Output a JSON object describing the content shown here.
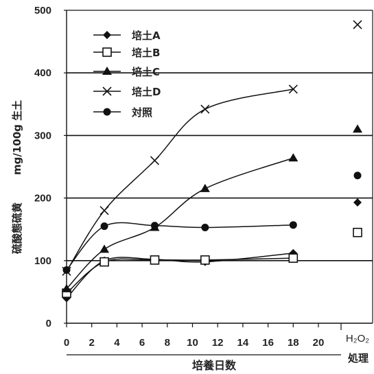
{
  "chart_data": {
    "type": "line",
    "xlabel": "培養日数",
    "ylabel_main": "硫酸態硫黄",
    "ylabel_unit": "mg/100g 生土",
    "x_ticks": [
      "0",
      "2",
      "4",
      "6",
      "8",
      "10",
      "12",
      "14",
      "16",
      "18",
      "20"
    ],
    "y_ticks": [
      "0",
      "100",
      "200",
      "300",
      "400",
      "500"
    ],
    "xlim": [
      0,
      20
    ],
    "ylim": [
      0,
      500
    ],
    "grid": "horizontal lines at 100, 200, 300, 400",
    "legend_position": "top-left",
    "extra_category": {
      "label_line1": "H2O2",
      "label_text": "H₂O₂",
      "label_line2": "処理"
    },
    "series": [
      {
        "name": "培土A",
        "marker": "diamond",
        "x": [
          0,
          3,
          7,
          11,
          18
        ],
        "y": [
          40,
          100,
          102,
          98,
          112
        ],
        "h2o2": 193
      },
      {
        "name": "培土B",
        "marker": "square-open",
        "x": [
          0,
          3,
          7,
          11,
          18
        ],
        "y": [
          48,
          98,
          101,
          101,
          104
        ],
        "h2o2": 145
      },
      {
        "name": "培土C",
        "marker": "triangle",
        "x": [
          0,
          3,
          7,
          11,
          18
        ],
        "y": [
          55,
          118,
          153,
          215,
          264
        ],
        "h2o2": 310
      },
      {
        "name": "培土D",
        "marker": "x",
        "x": [
          0,
          3,
          7,
          11,
          18
        ],
        "y": [
          83,
          180,
          260,
          342,
          374
        ],
        "h2o2": 477
      },
      {
        "name": "対照",
        "marker": "circle",
        "x": [
          0,
          3,
          7,
          11,
          18
        ],
        "y": [
          85,
          155,
          156,
          153,
          157
        ],
        "h2o2": 236
      }
    ]
  }
}
